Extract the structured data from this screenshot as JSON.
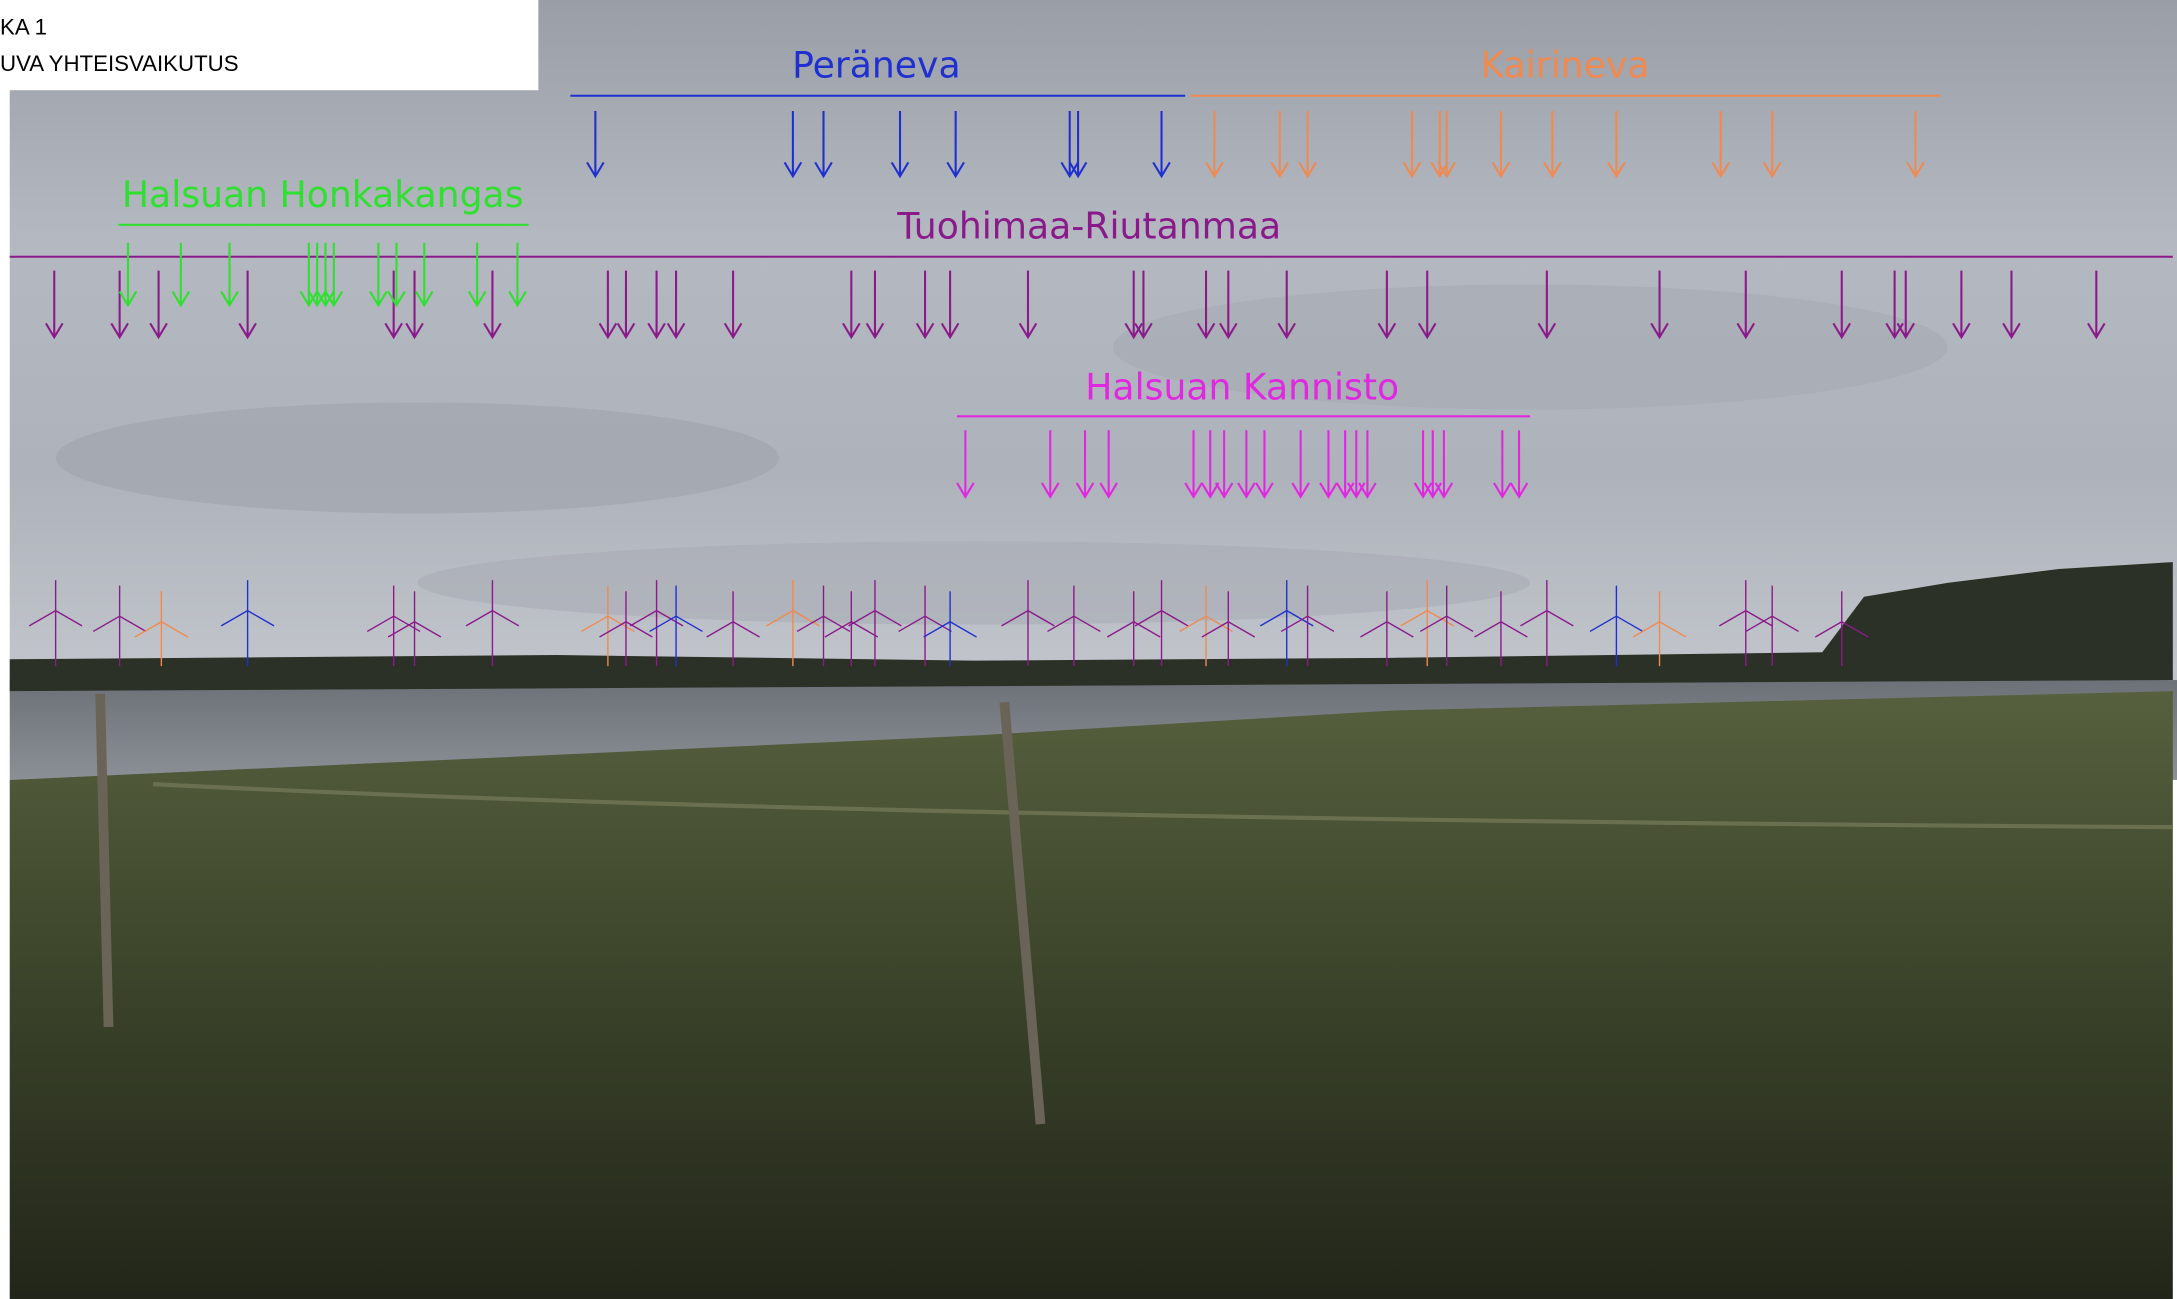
{
  "header": {
    "title": "KA 1",
    "subtitle": "UVA YHTEISVAIKUTUS"
  },
  "labels": {
    "peraneva": "Peräneva",
    "kairineva": "Kairineva",
    "honkakangas": "Halsuan Honkakangas",
    "tuohimaa": "Tuohimaa-Riutanmaa",
    "kannisto": "Halsuan Kannisto"
  }
}
